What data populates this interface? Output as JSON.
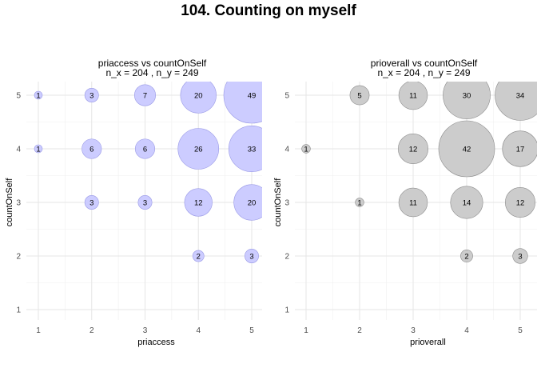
{
  "figure_title": "104. Counting on myself",
  "chart_data": [
    {
      "type": "scatter",
      "title_line1": "priaccess vs countOnSelf",
      "title_line2": "n_x = 204 , n_y = 249",
      "xlabel": "priaccess",
      "ylabel": "countOnSelf",
      "x_ticks": [
        "1",
        "2",
        "3",
        "4",
        "5"
      ],
      "y_ticks": [
        "1",
        "2",
        "3",
        "4",
        "5"
      ],
      "xlim": [
        0.6,
        5.2
      ],
      "ylim": [
        0.8,
        5.2
      ],
      "grid": true,
      "bubble_fill": "#ccccff",
      "bubble_stroke": "#9999e6",
      "points": [
        {
          "x": 1,
          "y": 5,
          "n": 1
        },
        {
          "x": 2,
          "y": 5,
          "n": 3
        },
        {
          "x": 3,
          "y": 5,
          "n": 7
        },
        {
          "x": 4,
          "y": 5,
          "n": 20
        },
        {
          "x": 5,
          "y": 5,
          "n": 49
        },
        {
          "x": 1,
          "y": 4,
          "n": 1
        },
        {
          "x": 2,
          "y": 4,
          "n": 6
        },
        {
          "x": 3,
          "y": 4,
          "n": 6
        },
        {
          "x": 4,
          "y": 4,
          "n": 26
        },
        {
          "x": 5,
          "y": 4,
          "n": 33
        },
        {
          "x": 2,
          "y": 3,
          "n": 3
        },
        {
          "x": 3,
          "y": 3,
          "n": 3
        },
        {
          "x": 4,
          "y": 3,
          "n": 12
        },
        {
          "x": 5,
          "y": 3,
          "n": 20
        },
        {
          "x": 4,
          "y": 2,
          "n": 2
        },
        {
          "x": 5,
          "y": 2,
          "n": 3
        }
      ]
    },
    {
      "type": "scatter",
      "title_line1": "prioverall vs countOnSelf",
      "title_line2": "n_x = 204 , n_y = 249",
      "xlabel": "prioverall",
      "ylabel": "countOnSelf",
      "x_ticks": [
        "1",
        "2",
        "3",
        "4",
        "5"
      ],
      "y_ticks": [
        "1",
        "2",
        "3",
        "4",
        "5"
      ],
      "xlim": [
        0.6,
        5.2
      ],
      "ylim": [
        0.8,
        5.2
      ],
      "grid": true,
      "bubble_fill": "#cccccc",
      "bubble_stroke": "#8c8c8c",
      "points": [
        {
          "x": 2,
          "y": 5,
          "n": 5
        },
        {
          "x": 3,
          "y": 5,
          "n": 11
        },
        {
          "x": 4,
          "y": 5,
          "n": 30
        },
        {
          "x": 5,
          "y": 5,
          "n": 34
        },
        {
          "x": 1,
          "y": 4,
          "n": 1
        },
        {
          "x": 3,
          "y": 4,
          "n": 12
        },
        {
          "x": 4,
          "y": 4,
          "n": 42
        },
        {
          "x": 5,
          "y": 4,
          "n": 17
        },
        {
          "x": 2,
          "y": 3,
          "n": 1
        },
        {
          "x": 3,
          "y": 3,
          "n": 11
        },
        {
          "x": 4,
          "y": 3,
          "n": 14
        },
        {
          "x": 5,
          "y": 3,
          "n": 12
        },
        {
          "x": 4,
          "y": 2,
          "n": 2
        },
        {
          "x": 5,
          "y": 2,
          "n": 3
        }
      ]
    }
  ]
}
